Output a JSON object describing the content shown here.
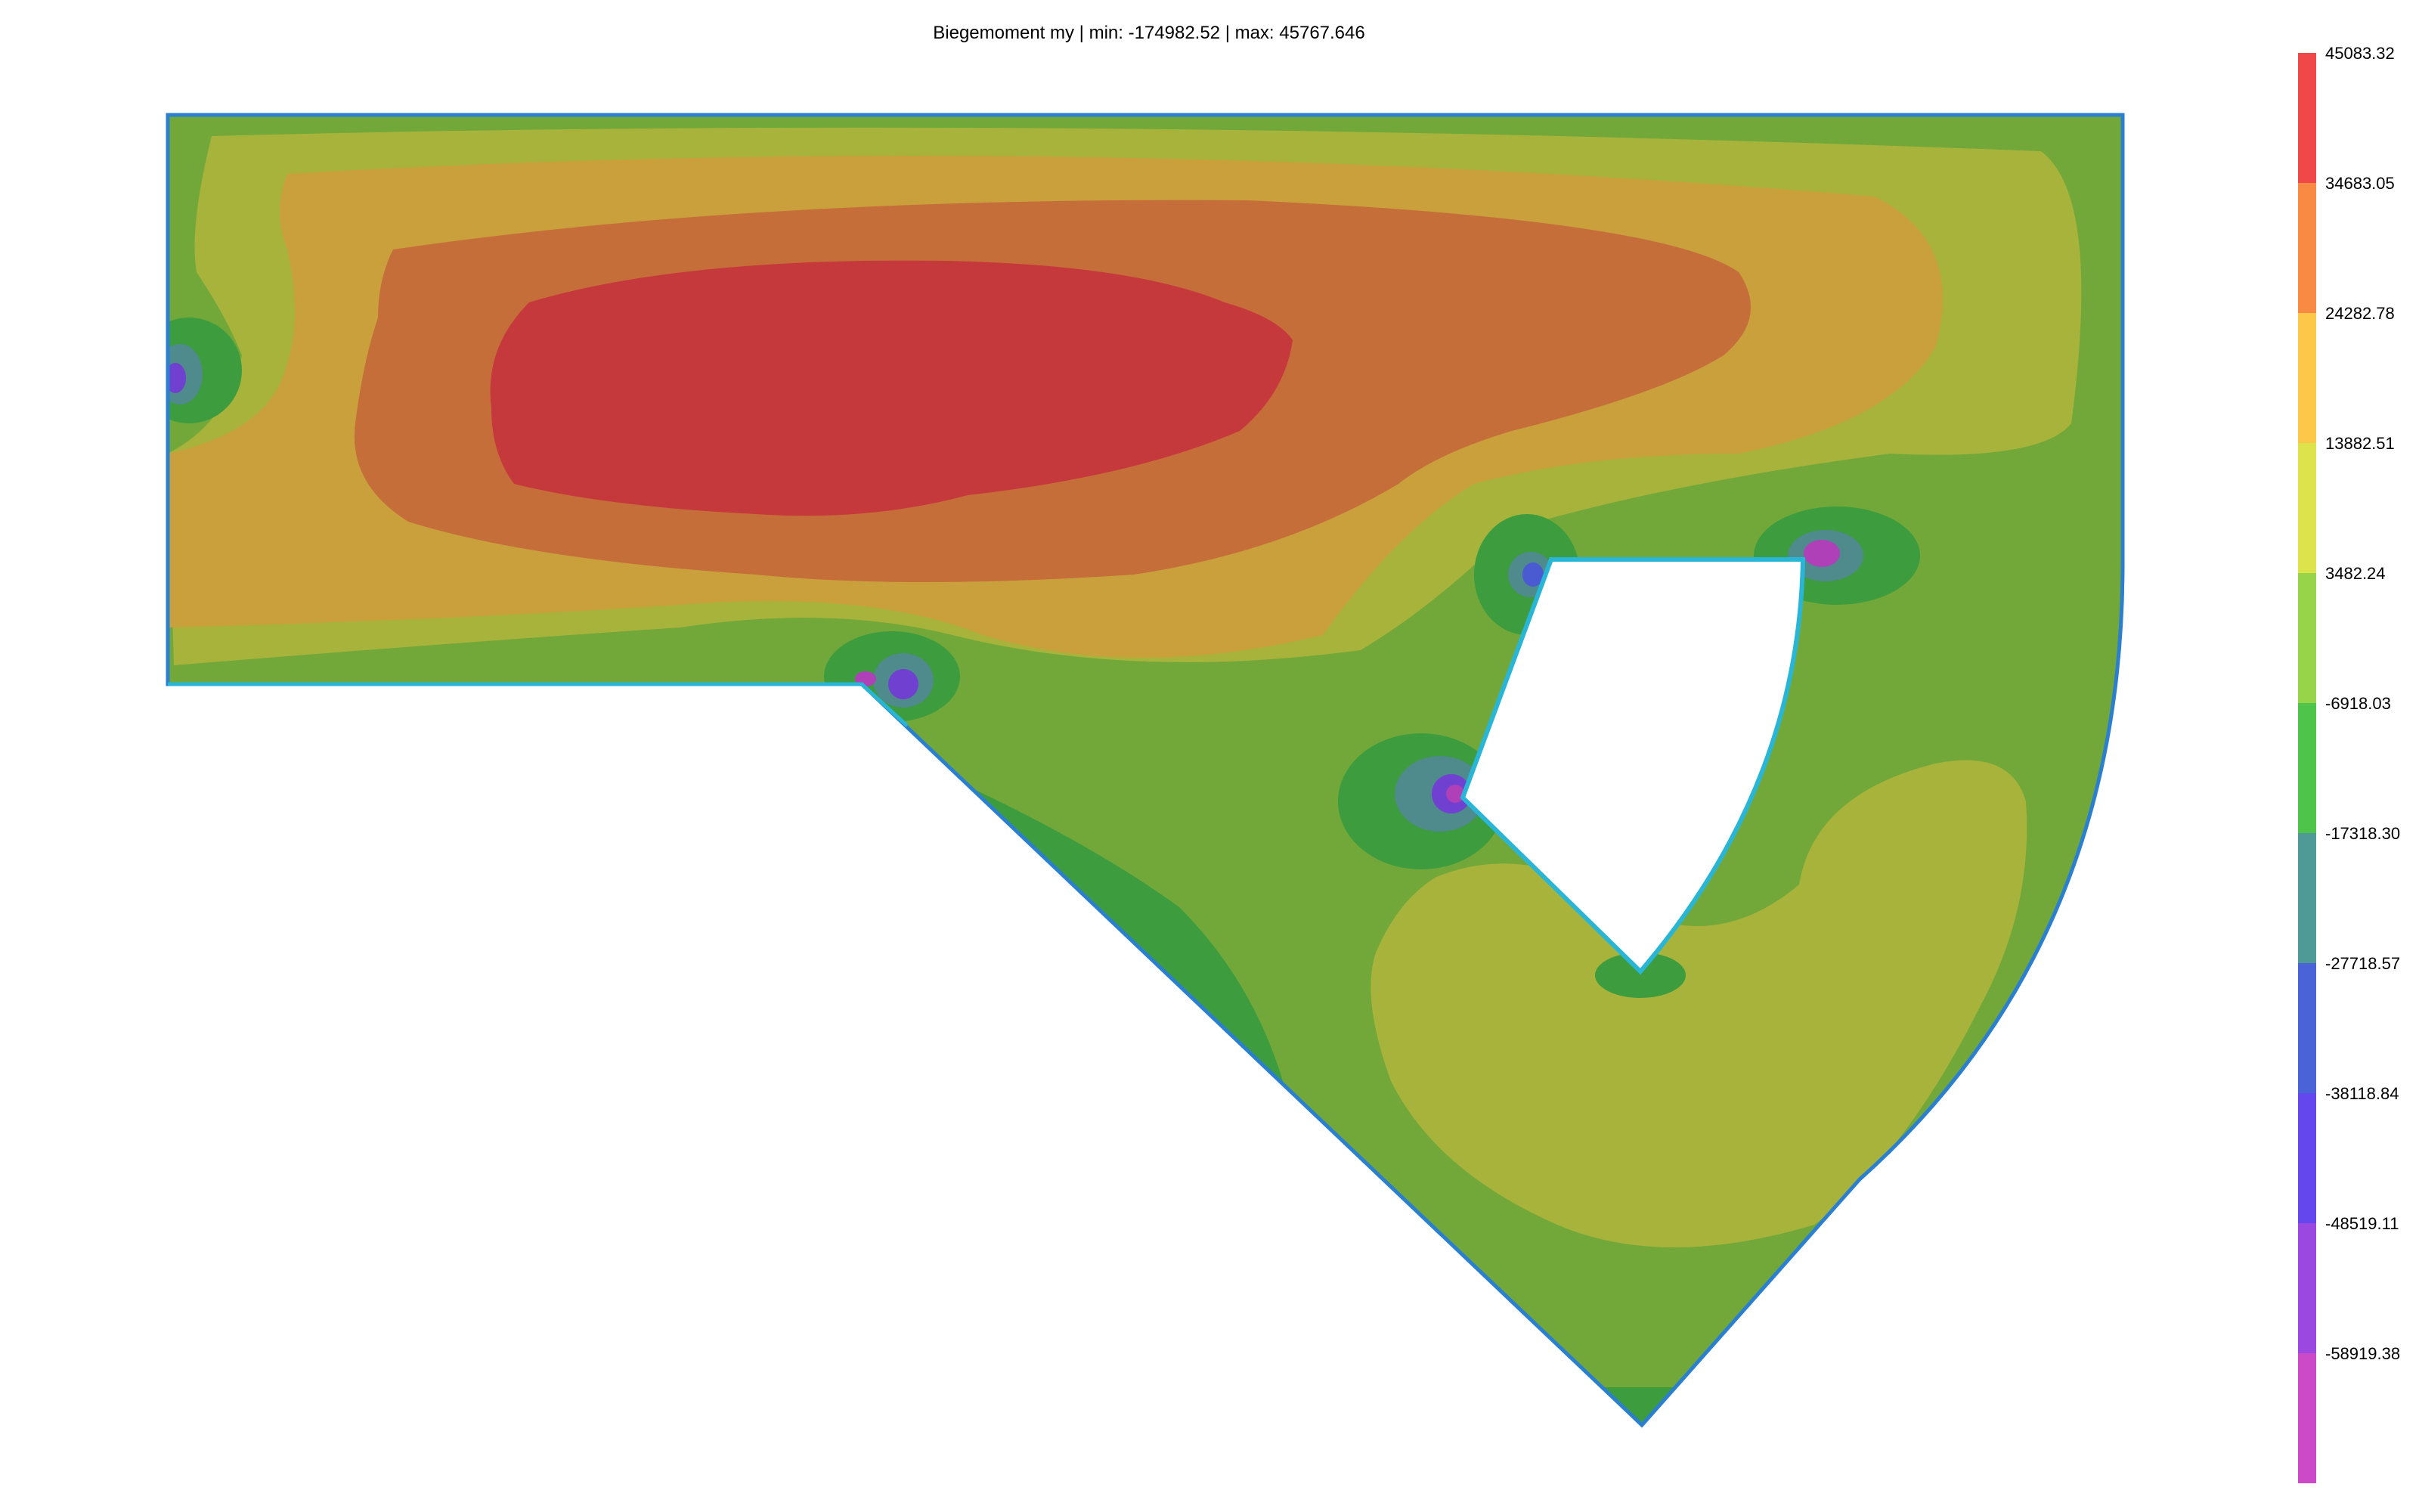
{
  "title": "Biegemoment my | min: -174982.52 | max: 45767.646",
  "colors": {
    "boundary": "#2a7fd0",
    "inner_edge": "#29b6d6",
    "background": "#ffffff"
  },
  "legend": {
    "labels": [
      "45083.32",
      "34683.05",
      "24282.78",
      "13882.51",
      "3482.24",
      "-6918.03",
      "-17318.30",
      "-27718.57",
      "-38118.84",
      "-48519.11",
      "-58919.38"
    ],
    "colors": [
      "#f04848",
      "#f98a44",
      "#fdc84a",
      "#dde34a",
      "#97d44a",
      "#4fc44a",
      "#4f9a96",
      "#4a64d8",
      "#6448ee",
      "#9a48e0",
      "#cc4ac8"
    ]
  },
  "contour_colors": {
    "base": "#72a83a",
    "light_band": "#a8b33c",
    "mid_band": "#c9a03c",
    "orange_band": "#c66e3a",
    "red_band": "#c5383c",
    "dark_green": "#3c9c3e",
    "teal": "#4f8a8c",
    "blue": "#4a5ad0",
    "violet": "#7040d0",
    "magenta": "#b040b8"
  }
}
